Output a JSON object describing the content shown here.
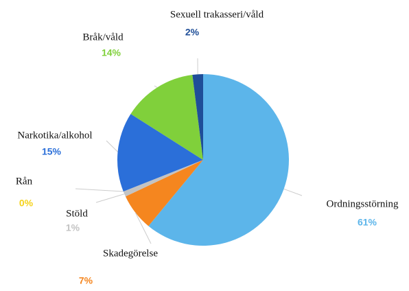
{
  "chart_data": {
    "type": "pie",
    "categories": [
      "Ordningsstörning",
      "Skadegörelse",
      "Stöld",
      "Rån",
      "Narkotika/alkohol",
      "Bråk/våld",
      "Sexuell  trakasseri/våld"
    ],
    "values": [
      61,
      7,
      1,
      0,
      15,
      14,
      2
    ],
    "value_labels": [
      "61%",
      "7%",
      "1%",
      "0%",
      "15%",
      "14%",
      "2%"
    ],
    "colors": [
      "#5cb5ea",
      "#f5861f",
      "#c3c3c3",
      "#f5d21a",
      "#2b6fd9",
      "#80d03b",
      "#1f4e98"
    ]
  }
}
